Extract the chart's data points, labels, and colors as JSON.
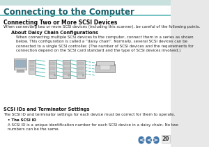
{
  "bg_header_color": "#c8e0de",
  "header_title": "Connecting to the Computer",
  "header_title_color": "#1a5f6a",
  "header_line_color": "#5ab8b8",
  "page_bg": "#e8e8e8",
  "content_bg": "#ffffff",
  "section_title": "Connecting Two or More SCSI Devices",
  "section_intro": "When connecting two or more SCSI devices (including this scanner), be careful of the following points.",
  "subsection1_title": "About Daisy Chain Configurations",
  "subsection1_body": "When connecting multiple SCSI devices to the computer, connect them in a series as shown\nbelow. This configuration is called a “daisy chain”. Normally, several SCSI devices can be\nconnected to a single SCSI controller. (The number of SCSI devices and the requirements for\nconnection depend on the SCSI card standard and the type of SCSI devices involved.)",
  "subsection2_title": "SCSI IDs and Terminator Settings",
  "subsection2_body": "The SCSI ID and terminator settings for each device must be correct for them to operate.",
  "bullet_title": "• The SCSI ID",
  "bullet_body": "A SCSI ID is a unique identification number for each SCSI device in a daisy chain. No two\nnumbers can be the same.",
  "page_number": "20",
  "page_number_color": "#333333",
  "nav_button_color": "#4477aa",
  "title_font_size": 8.5,
  "section_font_size": 5.5,
  "body_font_size": 4.0,
  "sub_font_size": 4.8
}
